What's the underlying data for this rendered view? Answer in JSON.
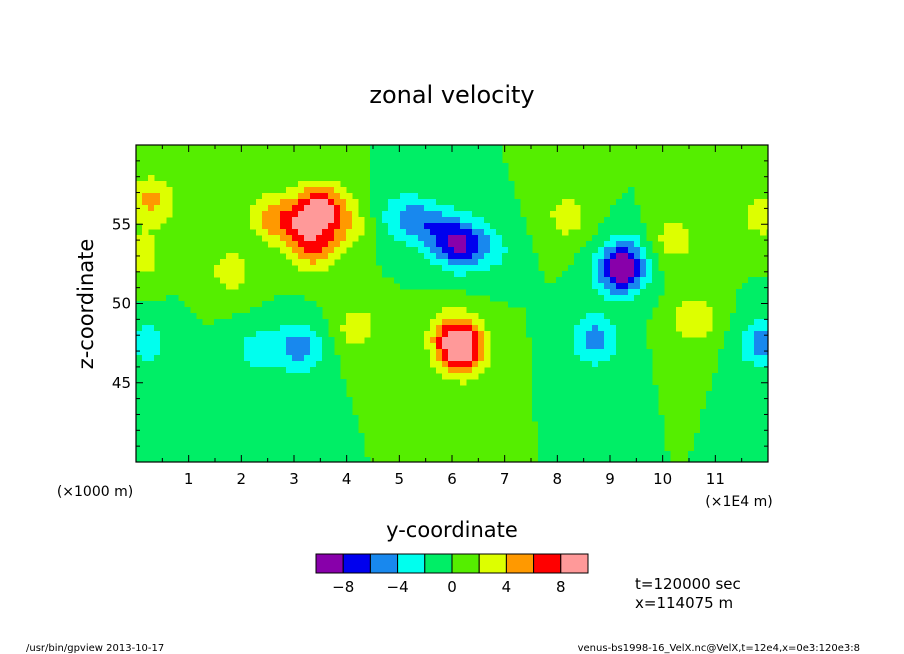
{
  "chart_data": {
    "type": "heatmap",
    "title": "zonal velocity",
    "xlabel": "y-coordinate",
    "ylabel": "z-coordinate",
    "x_unit": "(×1E4 m)",
    "y_unit": "(×1000 m)",
    "xlim": [
      0,
      12
    ],
    "ylim": [
      40,
      60
    ],
    "x_ticks": [
      "1",
      "2",
      "3",
      "4",
      "5",
      "6",
      "7",
      "8",
      "9",
      "10",
      "11"
    ],
    "y_ticks": [
      "45",
      "50",
      "55"
    ],
    "colorbar": {
      "levels": [
        -10,
        -8,
        -6,
        -4,
        -2,
        0,
        2,
        4,
        6,
        8,
        10
      ],
      "tick_labels": [
        "-8",
        "-4",
        "0",
        "4",
        "8"
      ],
      "colors": [
        "#8800aa",
        "#0000ee",
        "#1888ee",
        "#00ffee",
        "#00ee66",
        "#55ee00",
        "#ddff00",
        "#ff9900",
        "#ff0000",
        "#ff9999"
      ]
    },
    "background_value": 0,
    "features": [
      {
        "y": 0.3,
        "z": 56.5,
        "value": 4.5
      },
      {
        "y": 0.1,
        "z": 53.0,
        "value": 3.0
      },
      {
        "y": 0.2,
        "z": 47.5,
        "value": -3.0
      },
      {
        "y": 1.8,
        "z": 52.0,
        "value": 3.0
      },
      {
        "y": 2.5,
        "z": 55.5,
        "value": 3.5
      },
      {
        "y": 3.0,
        "z": 55.0,
        "value": 4.5
      },
      {
        "y": 3.5,
        "z": 56.0,
        "value": 8.0
      },
      {
        "y": 3.4,
        "z": 53.5,
        "value": 5.0
      },
      {
        "y": 4.0,
        "z": 55.0,
        "value": 3.0
      },
      {
        "y": 2.3,
        "z": 47.0,
        "value": -3.0
      },
      {
        "y": 3.1,
        "z": 47.2,
        "value": -5.0
      },
      {
        "y": 5.0,
        "z": 55.5,
        "value": -3.0
      },
      {
        "y": 5.5,
        "z": 55.0,
        "value": -4.5
      },
      {
        "y": 6.1,
        "z": 53.8,
        "value": -8.0
      },
      {
        "y": 6.7,
        "z": 53.5,
        "value": -3.0
      },
      {
        "y": 4.2,
        "z": 48.5,
        "value": 3.0
      },
      {
        "y": 6.2,
        "z": 47.0,
        "value": 8.5
      },
      {
        "y": 6.0,
        "z": 48.0,
        "value": 5.0
      },
      {
        "y": 8.7,
        "z": 47.7,
        "value": -5.0
      },
      {
        "y": 9.2,
        "z": 52.0,
        "value": -8.0
      },
      {
        "y": 9.3,
        "z": 53.0,
        "value": -3.0
      },
      {
        "y": 8.2,
        "z": 55.5,
        "value": 3.0
      },
      {
        "y": 10.2,
        "z": 54.0,
        "value": 3.0
      },
      {
        "y": 10.6,
        "z": 49.0,
        "value": 3.5
      },
      {
        "y": 11.9,
        "z": 47.5,
        "value": -5.0
      },
      {
        "y": 11.9,
        "z": 55.5,
        "value": 3.0
      }
    ]
  },
  "info": {
    "time": "t=120000 sec",
    "xpos": "x=114075 m"
  },
  "footer": {
    "left": "/usr/bin/gpview  2013-10-17",
    "right": "venus-bs1998-16_VelX.nc@VelX,t=12e4,x=0e3:120e3:8"
  }
}
